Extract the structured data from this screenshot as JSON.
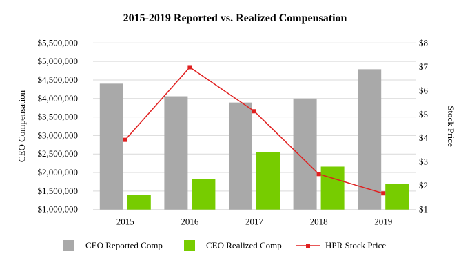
{
  "chart_data": {
    "type": "bar+line",
    "title": "2015-2019 Reported vs. Realized Compensation",
    "categories": [
      "2015",
      "2016",
      "2017",
      "2018",
      "2019"
    ],
    "ylabel": "CEO Compensation",
    "y2label": "Stock Price",
    "ylim": [
      1000000,
      5500000
    ],
    "y2lim": [
      1,
      8
    ],
    "yticks": [
      "$1,000,000",
      "$1,500,000",
      "$2,000,000",
      "$2,500,000",
      "$3,000,000",
      "$3,500,000",
      "$4,000,000",
      "$4,500,000",
      "$5,000,000",
      "$5,500,000"
    ],
    "y2ticks": [
      "$1",
      "$2",
      "$3",
      "$4",
      "$5",
      "$6",
      "$7",
      "$8"
    ],
    "grid": true,
    "legend": "bottom",
    "series": [
      {
        "name": "CEO Reported Comp",
        "type": "bar",
        "axis": "left",
        "color": "#a9a9a9",
        "values": [
          4400000,
          4060000,
          3890000,
          4000000,
          4790000
        ]
      },
      {
        "name": "CEO Realized Comp",
        "type": "bar",
        "axis": "left",
        "color": "#77cc00",
        "values": [
          1390000,
          1830000,
          2560000,
          2160000,
          1700000
        ]
      },
      {
        "name": "HPR Stock Price",
        "type": "line",
        "axis": "right",
        "color": "#e02020",
        "values": [
          3.93,
          6.98,
          5.13,
          2.49,
          1.68
        ]
      }
    ]
  }
}
